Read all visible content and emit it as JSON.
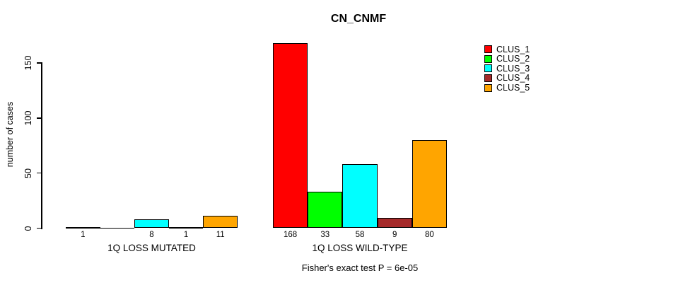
{
  "title": "CN_CNMF",
  "ylabel": "number of cases",
  "footer": "Fisher's exact test P = 6e-05",
  "legend": {
    "items": [
      {
        "label": "CLUS_1",
        "color": "#FF0000"
      },
      {
        "label": "CLUS_2",
        "color": "#00FF00"
      },
      {
        "label": "CLUS_3",
        "color": "#00FFFF"
      },
      {
        "label": "CLUS_4",
        "color": "#A52A2A"
      },
      {
        "label": "CLUS_5",
        "color": "#FFA500"
      }
    ]
  },
  "chart_data": {
    "type": "bar",
    "title": "CN_CNMF",
    "xlabel": "",
    "ylabel": "number of cases",
    "ylim": [
      0,
      150
    ],
    "yticks": [
      0,
      50,
      100,
      150
    ],
    "grid": false,
    "legend_position": "right-inside",
    "series_names": [
      "CLUS_1",
      "CLUS_2",
      "CLUS_3",
      "CLUS_4",
      "CLUS_5"
    ],
    "series_colors": [
      "#FF0000",
      "#00FF00",
      "#00FFFF",
      "#A52A2A",
      "#FFA500"
    ],
    "groups": [
      {
        "label": "1Q LOSS MUTATED",
        "values": [
          1,
          0,
          8,
          1,
          11
        ],
        "value_labels": [
          "1",
          "",
          "8",
          "1",
          "11"
        ]
      },
      {
        "label": "1Q LOSS WILD-TYPE",
        "values": [
          168,
          33,
          58,
          9,
          80
        ],
        "value_labels": [
          "168",
          "33",
          "58",
          "9",
          "80"
        ]
      }
    ],
    "annotation": "Fisher's exact test P = 6e-05"
  }
}
